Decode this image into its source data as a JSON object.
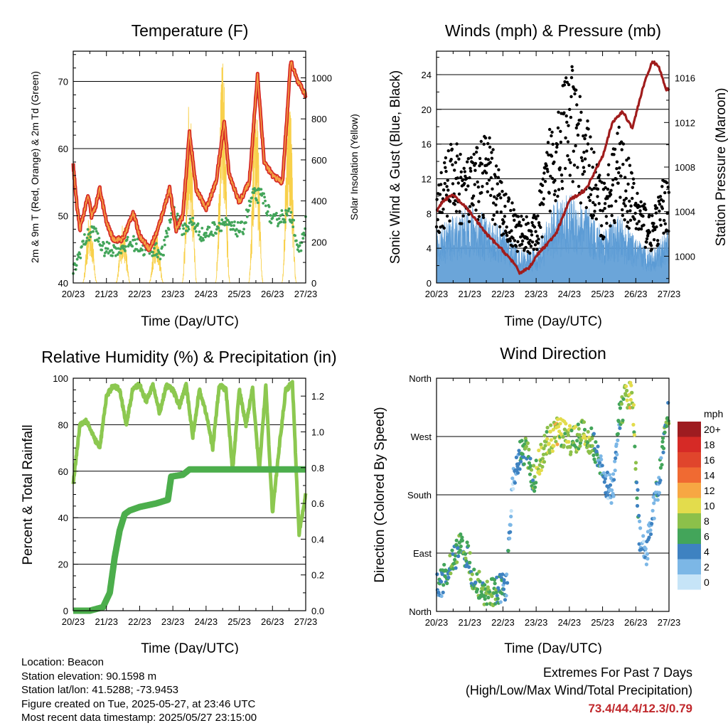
{
  "xticks": [
    "20/23",
    "21/23",
    "22/23",
    "23/23",
    "24/23",
    "25/23",
    "26/23",
    "27/23"
  ],
  "panels": {
    "temperature": {
      "title": "Temperature (F)",
      "xlabel": "Time (Day/UTC)",
      "ylabel_left": "2m & 9m T (Red, Orange) & 2m Td (Green)",
      "ylabel_right": "Solar Insolation (Yellow)",
      "yticks_left": [
        40,
        50,
        60,
        70
      ],
      "yticks_right": [
        0,
        200,
        400,
        600,
        800,
        1000
      ]
    },
    "winds": {
      "title": "Winds (mph) & Pressure (mb)",
      "xlabel": "Time (Day/UTC)",
      "ylabel_left": "Sonic Wind & Gust (Blue, Black)",
      "ylabel_right": "Station Pressure (Maroon)",
      "yticks_left": [
        0,
        4,
        8,
        12,
        16,
        20,
        24
      ],
      "yticks_right": [
        1000,
        1004,
        1008,
        1012,
        1016
      ]
    },
    "humidity": {
      "title": "Relative Humidity (%) & Precipitation (in)",
      "xlabel": "Time (Day/UTC)",
      "ylabel_left": "Percent & Total Rainfall",
      "yticks_left": [
        0,
        20,
        40,
        60,
        80,
        100
      ],
      "yticks_right": [
        "0.0",
        "0.2",
        "0.4",
        "0.6",
        "0.8",
        "1.0",
        "1.2"
      ]
    },
    "direction": {
      "title": "Wind Direction",
      "xlabel": "Time (Day/UTC)",
      "ylabel_left": "Direction (Colored By Speed)",
      "yticks_left": [
        "North",
        "East",
        "South",
        "West",
        "North"
      ],
      "legend_title": "mph",
      "legend_labels": [
        "20+",
        "18",
        "16",
        "14",
        "12",
        "10",
        "8",
        "6",
        "4",
        "2",
        "0"
      ],
      "legend_colors": [
        "#9e1c20",
        "#d62a26",
        "#e0452c",
        "#f06a32",
        "#f7a743",
        "#e3dc4c",
        "#8cc04a",
        "#43a55a",
        "#3e82c1",
        "#7cb7e6",
        "#c6e4f7"
      ]
    }
  },
  "info": {
    "location": "Location: Beacon",
    "elevation": "Station elevation: 90.1598 m",
    "latlon": "Station lat/lon: 41.5288; -73.9453",
    "created": "Figure created on Tue, 2025-05-27, at 23:46 UTC",
    "recent": "Most recent data timestamp: 2025/05/27 23:15:00"
  },
  "extremes": {
    "title": "Extremes For Past 7 Days",
    "subtitle": "(High/Low/Max Wind/Total Precipitation)",
    "values": "73.4/44.4/12.3/0.79"
  },
  "chart_data": [
    {
      "type": "line",
      "title": "Temperature (F)",
      "x_unit": "days since 20/23 UTC",
      "ylim": [
        40,
        74.5
      ],
      "y2lim": [
        0,
        1130
      ],
      "series": [
        {
          "name": "2m & 9m T (Red, Orange)",
          "color": "#d62a26",
          "x": [
            0,
            0.1,
            0.2,
            0.35,
            0.45,
            0.55,
            0.65,
            0.8,
            1.0,
            1.2,
            1.5,
            1.8,
            2.0,
            2.3,
            2.55,
            2.9,
            3.1,
            3.3,
            3.5,
            3.7,
            4.0,
            4.3,
            4.55,
            4.7,
            5.0,
            5.3,
            5.55,
            5.75,
            6.0,
            6.3,
            6.55,
            6.75,
            7.0
          ],
          "values": [
            57.5,
            52,
            48,
            51,
            53,
            50,
            51,
            54,
            49,
            46.5,
            46.5,
            50.5,
            47,
            45,
            48,
            54,
            48,
            50,
            62.5,
            54,
            51,
            55,
            64,
            56,
            52,
            55,
            71,
            58,
            56,
            55,
            73,
            70,
            68
          ]
        },
        {
          "name": "2m Td (Green)",
          "color": "#43a55a",
          "x": [
            0,
            0.3,
            0.6,
            0.9,
            1.2,
            1.5,
            1.8,
            2.1,
            2.4,
            2.7,
            3.0,
            3.3,
            3.6,
            3.9,
            4.2,
            4.5,
            4.8,
            5.1,
            5.4,
            5.7,
            6.0,
            6.3,
            6.6,
            6.8,
            7.0
          ],
          "values": [
            41.5,
            46,
            48,
            45,
            45,
            45.5,
            46,
            45,
            45,
            44.5,
            51,
            48,
            49,
            47,
            48,
            49,
            48,
            48,
            53,
            53,
            49,
            50,
            50,
            44,
            49
          ]
        },
        {
          "name": "Solar Insolation (Yellow)",
          "color": "#f8d04a",
          "axis": "right",
          "peak_x": [
            0.5,
            1.5,
            2.5,
            3.5,
            4.5,
            5.5,
            6.5
          ],
          "peak_values": [
            340,
            300,
            280,
            900,
            1100,
            920,
            1000
          ]
        }
      ]
    },
    {
      "type": "scatter",
      "title": "Winds (mph) & Pressure (mb)",
      "ylim": [
        0,
        26.7
      ],
      "y2lim": [
        997.6,
        1018.4
      ],
      "series": [
        {
          "name": "Sonic Wind (Blue)",
          "color": "#5b9bd5",
          "x": [
            0,
            0.5,
            1.0,
            1.5,
            2.0,
            2.5,
            3.0,
            3.5,
            4.0,
            4.5,
            5.0,
            5.5,
            6.0,
            6.5,
            7.0
          ],
          "values": [
            5,
            6,
            7,
            6,
            5,
            3,
            3,
            7,
            8,
            7,
            5,
            6,
            4,
            3,
            5
          ]
        },
        {
          "name": "Gust (Black)",
          "color": "#000000",
          "x": [
            0,
            0.5,
            1.0,
            1.5,
            2.0,
            2.5,
            3.0,
            3.5,
            4.0,
            4.5,
            5.0,
            5.5,
            6.0,
            6.5,
            7.0
          ],
          "values": [
            9,
            13,
            11,
            14,
            9,
            6,
            6,
            16,
            20,
            15,
            9,
            14,
            9,
            6,
            11
          ]
        },
        {
          "name": "Station Pressure (Maroon)",
          "color": "#a01c1c",
          "axis": "right",
          "x": [
            0,
            0.2,
            0.5,
            1.0,
            1.5,
            2.0,
            2.3,
            2.5,
            2.8,
            3.0,
            3.3,
            3.6,
            4.0,
            4.5,
            5.0,
            5.3,
            5.6,
            5.9,
            6.2,
            6.5,
            6.7,
            6.9,
            7.0
          ],
          "values": [
            1004,
            1005,
            1005.5,
            1004,
            1002,
            1000.5,
            999.5,
            998.5,
            999,
            1000,
            1001,
            1002,
            1005,
            1006,
            1009,
            1012,
            1013,
            1011.5,
            1015,
            1017.5,
            1017,
            1015,
            1015
          ]
        }
      ]
    },
    {
      "type": "line",
      "title": "Relative Humidity (%) & Precipitation (in)",
      "ylim": [
        0,
        100
      ],
      "y2lim": [
        0,
        1.3
      ],
      "series": [
        {
          "name": "Relative Humidity",
          "color": "#8cc850",
          "x": [
            0,
            0.2,
            0.4,
            0.6,
            0.8,
            1.0,
            1.2,
            1.4,
            1.6,
            1.8,
            2.0,
            2.2,
            2.4,
            2.6,
            2.8,
            3.0,
            3.2,
            3.4,
            3.6,
            3.8,
            4.0,
            4.2,
            4.4,
            4.6,
            4.8,
            5.0,
            5.2,
            5.4,
            5.6,
            5.8,
            6.0,
            6.2,
            6.4,
            6.6,
            6.8,
            7.0
          ],
          "values": [
            55,
            80,
            82,
            75,
            70,
            92,
            97,
            95,
            80,
            96,
            97,
            90,
            97,
            85,
            97,
            95,
            88,
            97,
            75,
            95,
            85,
            70,
            97,
            95,
            60,
            95,
            80,
            96,
            60,
            97,
            42,
            70,
            95,
            98,
            33,
            50
          ]
        },
        {
          "name": "Total Rainfall",
          "color": "#4cae4c",
          "axis": "right",
          "x": [
            0,
            0.5,
            0.9,
            1.1,
            1.25,
            1.4,
            1.55,
            1.7,
            2.0,
            2.5,
            2.85,
            2.95,
            3.3,
            3.5,
            7.0
          ],
          "values": [
            0,
            0,
            0.02,
            0.1,
            0.3,
            0.45,
            0.54,
            0.56,
            0.58,
            0.6,
            0.62,
            0.75,
            0.76,
            0.79,
            0.79
          ]
        }
      ]
    },
    {
      "type": "scatter",
      "title": "Wind Direction",
      "y_unit": "degrees (0=North, 90=East, 180=South, 270=West, 360=North)",
      "ylim": [
        0,
        360
      ],
      "legend": "right",
      "series": [
        {
          "name": "Direction",
          "x": [
            0.1,
            0.3,
            0.5,
            0.7,
            0.9,
            1.1,
            1.3,
            1.5,
            1.7,
            1.9,
            2.1,
            2.3,
            2.5,
            2.7,
            2.9,
            3.1,
            3.3,
            3.5,
            3.7,
            3.9,
            4.1,
            4.3,
            4.5,
            4.7,
            4.9,
            5.1,
            5.3,
            5.5,
            5.7,
            5.9,
            6.1,
            6.3,
            6.5,
            6.7,
            6.9
          ],
          "values": [
            40,
            60,
            80,
            100,
            90,
            50,
            40,
            30,
            30,
            35,
            40,
            200,
            240,
            250,
            200,
            230,
            260,
            270,
            280,
            270,
            260,
            275,
            270,
            260,
            240,
            200,
            180,
            300,
            330,
            340,
            120,
            80,
            150,
            200,
            300
          ],
          "speeds": [
            4,
            5,
            6,
            6,
            5,
            6,
            6,
            7,
            7,
            5,
            4,
            2,
            4,
            7,
            6,
            9,
            8,
            10,
            9,
            8,
            8,
            7,
            9,
            6,
            4,
            3,
            2,
            5,
            9,
            10,
            3,
            2,
            3,
            4,
            6
          ]
        }
      ]
    }
  ]
}
